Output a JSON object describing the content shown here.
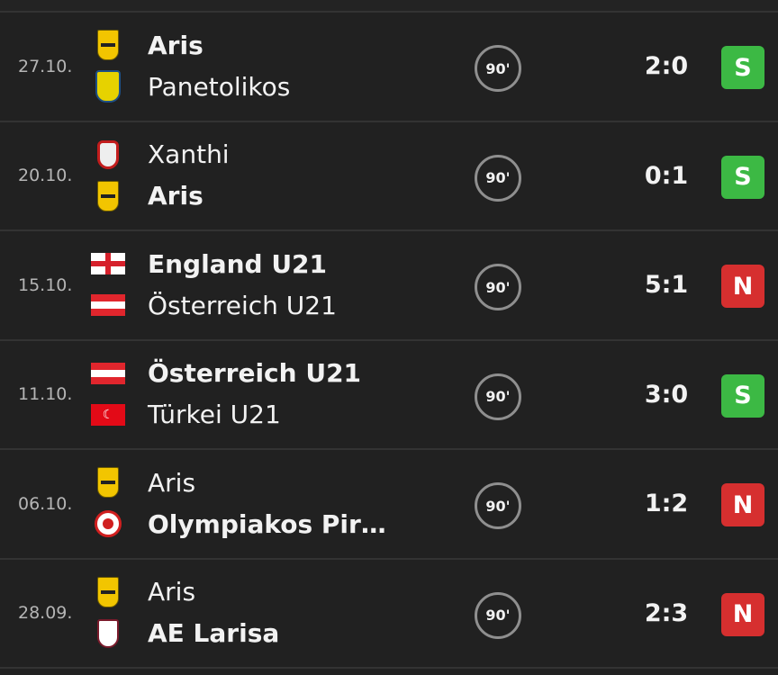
{
  "colors": {
    "win": "#3cb944",
    "loss": "#d62f2f",
    "background": "#212121"
  },
  "matches": [
    {
      "date": "27.10.",
      "home": {
        "name": "Aris",
        "bold": true,
        "logo": "aris-crest"
      },
      "away": {
        "name": "Panetolikos",
        "bold": false,
        "logo": "panetolikos-crest"
      },
      "minute": "90'",
      "score": "2:0",
      "result": "S",
      "result_type": "win"
    },
    {
      "date": "20.10.",
      "home": {
        "name": "Xanthi",
        "bold": false,
        "logo": "xanthi-crest"
      },
      "away": {
        "name": "Aris",
        "bold": true,
        "logo": "aris-crest"
      },
      "minute": "90'",
      "score": "0:1",
      "result": "S",
      "result_type": "win"
    },
    {
      "date": "15.10.",
      "home": {
        "name": "England U21",
        "bold": true,
        "logo": "england-flag"
      },
      "away": {
        "name": "Österreich U21",
        "bold": false,
        "logo": "austria-flag"
      },
      "minute": "90'",
      "score": "5:1",
      "result": "N",
      "result_type": "loss"
    },
    {
      "date": "11.10.",
      "home": {
        "name": "Österreich U21",
        "bold": true,
        "logo": "austria-flag"
      },
      "away": {
        "name": "Türkei U21",
        "bold": false,
        "logo": "turkey-flag"
      },
      "minute": "90'",
      "score": "3:0",
      "result": "S",
      "result_type": "win"
    },
    {
      "date": "06.10.",
      "home": {
        "name": "Aris",
        "bold": false,
        "logo": "aris-crest"
      },
      "away": {
        "name": "Olympiakos Pir…",
        "bold": true,
        "logo": "olympiakos-crest"
      },
      "minute": "90'",
      "score": "1:2",
      "result": "N",
      "result_type": "loss"
    },
    {
      "date": "28.09.",
      "home": {
        "name": "Aris",
        "bold": false,
        "logo": "aris-crest"
      },
      "away": {
        "name": "AE Larisa",
        "bold": true,
        "logo": "larisa-crest"
      },
      "minute": "90'",
      "score": "2:3",
      "result": "N",
      "result_type": "loss"
    }
  ]
}
